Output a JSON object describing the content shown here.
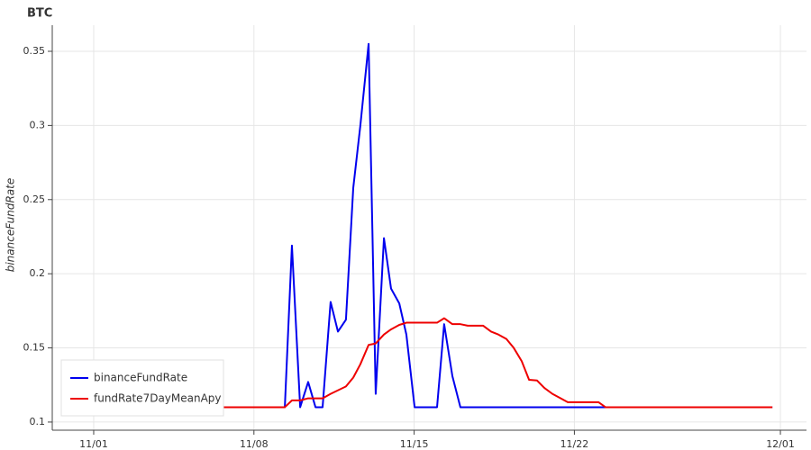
{
  "chart_data": {
    "type": "line",
    "title": "BTC",
    "y_label": "binanceFundRate",
    "xlim": [
      -1.81,
      31.14
    ],
    "ylim": [
      0.0945,
      0.3676
    ],
    "xticks": [
      {
        "value": 0,
        "label": "11/01"
      },
      {
        "value": 7,
        "label": "11/08"
      },
      {
        "value": 14,
        "label": "11/15"
      },
      {
        "value": 21,
        "label": "11/22"
      },
      {
        "value": 30,
        "label": "12/01"
      }
    ],
    "yticks": [
      0.1,
      0.15,
      0.2,
      0.25,
      0.3,
      0.35
    ],
    "grid": true,
    "legend": "lower-left",
    "series": [
      {
        "name": "binanceFundRate",
        "color": "#0000ee",
        "x": [
          4.57,
          8.35,
          8.66,
          9.02,
          9.37,
          9.69,
          10.0,
          10.35,
          10.67,
          11.02,
          11.34,
          11.65,
          12.01,
          12.32,
          12.68,
          12.99,
          13.35,
          13.66,
          14.02,
          15.0,
          15.31,
          15.67,
          16.02,
          29.65
        ],
        "values": [
          0.11,
          0.11,
          0.219,
          0.11,
          0.127,
          0.11,
          0.11,
          0.181,
          0.161,
          0.169,
          0.258,
          0.3,
          0.355,
          0.119,
          0.224,
          0.19,
          0.18,
          0.159,
          0.11,
          0.11,
          0.166,
          0.131,
          0.11,
          0.11
        ]
      },
      {
        "name": "fundRate7DayMeanApy",
        "color": "#ee0000",
        "x": [
          4.57,
          8.35,
          8.66,
          9.02,
          9.37,
          10.0,
          10.35,
          11.02,
          11.34,
          11.65,
          12.01,
          12.32,
          12.68,
          12.99,
          13.35,
          13.66,
          15.0,
          15.31,
          15.67,
          16.02,
          16.34,
          17.01,
          17.36,
          17.68,
          18.03,
          18.35,
          18.7,
          19.02,
          19.37,
          19.69,
          20.04,
          20.35,
          20.71,
          22.05,
          22.36,
          29.65
        ],
        "values": [
          0.11,
          0.11,
          0.1146,
          0.1146,
          0.116,
          0.116,
          0.119,
          0.124,
          0.13,
          0.139,
          0.152,
          0.153,
          0.159,
          0.1625,
          0.1655,
          0.167,
          0.167,
          0.17,
          0.166,
          0.166,
          0.165,
          0.165,
          0.161,
          0.159,
          0.156,
          0.15,
          0.141,
          0.1285,
          0.128,
          0.123,
          0.119,
          0.1164,
          0.1134,
          0.1134,
          0.11,
          0.11
        ]
      }
    ]
  }
}
